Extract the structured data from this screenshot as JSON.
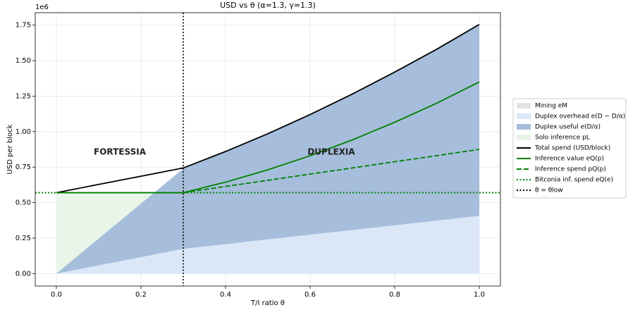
{
  "chart_data": {
    "type": "area",
    "title": "USD vs θ (α=1.3, γ=1.3)",
    "xlabel": "T/I ratio θ",
    "ylabel": "USD per block",
    "y_offset_label": "1e6",
    "x": [
      0,
      0.1,
      0.2,
      0.3,
      0.4,
      0.5,
      0.6,
      0.7,
      0.8,
      0.9,
      1.0
    ],
    "xlim": [
      -0.05,
      1.05
    ],
    "ylim": [
      -0.0875,
      1.8375
    ],
    "xticks": [
      {
        "value": 0,
        "label": "0.0"
      },
      0.2,
      0.4,
      0.6,
      0.8,
      {
        "value": 1,
        "label": "1.0"
      }
    ],
    "yticks": [
      {
        "value": 0,
        "label": "0.00"
      },
      0.25,
      {
        "value": 0.5,
        "label": "0.50"
      },
      0.75,
      {
        "value": 1,
        "label": "1.00"
      },
      1.25,
      {
        "value": 1.5,
        "label": "1.50"
      },
      1.75
    ],
    "grid": true,
    "legend": "right",
    "series": [
      {
        "name": "Mining eM",
        "kind": "area",
        "stacked": true,
        "color": "#e3e3e3",
        "values": [
          0,
          0,
          0,
          0,
          0,
          0,
          0,
          0,
          0,
          0,
          0
        ]
      },
      {
        "name": "Duplex overhead e(D − D/α)",
        "kind": "area",
        "stacked": true,
        "color": "#dbe7f7",
        "values": [
          0,
          0.058,
          0.116,
          0.174,
          0.207,
          0.241,
          0.274,
          0.307,
          0.34,
          0.374,
          0.407
        ]
      },
      {
        "name": "Duplex useful e(D/α)",
        "kind": "area",
        "stacked": true,
        "color": "#a6bedc",
        "values": [
          0,
          0.189,
          0.377,
          0.566,
          0.653,
          0.744,
          0.846,
          0.958,
          1.079,
          1.207,
          1.348
        ]
      },
      {
        "name": "Solo inference pL",
        "kind": "area",
        "stacked": false,
        "color": "#eaf5ea",
        "values": [
          0.57,
          0.57,
          0.57,
          0.57,
          null,
          null,
          null,
          null,
          null,
          null,
          null
        ]
      },
      {
        "name": "Total spend (USD/block)",
        "kind": "line",
        "dash": "solid",
        "color": "#000000",
        "values": [
          0.57,
          0.628,
          0.686,
          0.744,
          0.86,
          0.985,
          1.12,
          1.265,
          1.419,
          1.581,
          1.755
        ]
      },
      {
        "name": "Inference value eQ(p)",
        "kind": "line",
        "dash": "solid",
        "color": "#008000",
        "values": [
          0.57,
          0.57,
          0.57,
          0.57,
          0.644,
          0.731,
          0.83,
          0.942,
          1.066,
          1.201,
          1.35
        ]
      },
      {
        "name": "Inference spend pQ(p)",
        "kind": "line",
        "dash": "dashed",
        "color": "#008000",
        "values": [
          0.57,
          0.57,
          0.57,
          0.57,
          0.614,
          0.657,
          0.701,
          0.744,
          0.788,
          0.831,
          0.875
        ]
      },
      {
        "name": "Bitconia inf. spend eQ(e)",
        "kind": "hline",
        "dash": "dotted",
        "color": "#008000",
        "value": 0.57
      },
      {
        "name": "θ = θlow",
        "kind": "vline",
        "dash": "dotted",
        "color": "#000000",
        "value": 0.3
      }
    ],
    "annotations": [
      "FORTESSIA",
      "DUPLEXIA"
    ]
  }
}
